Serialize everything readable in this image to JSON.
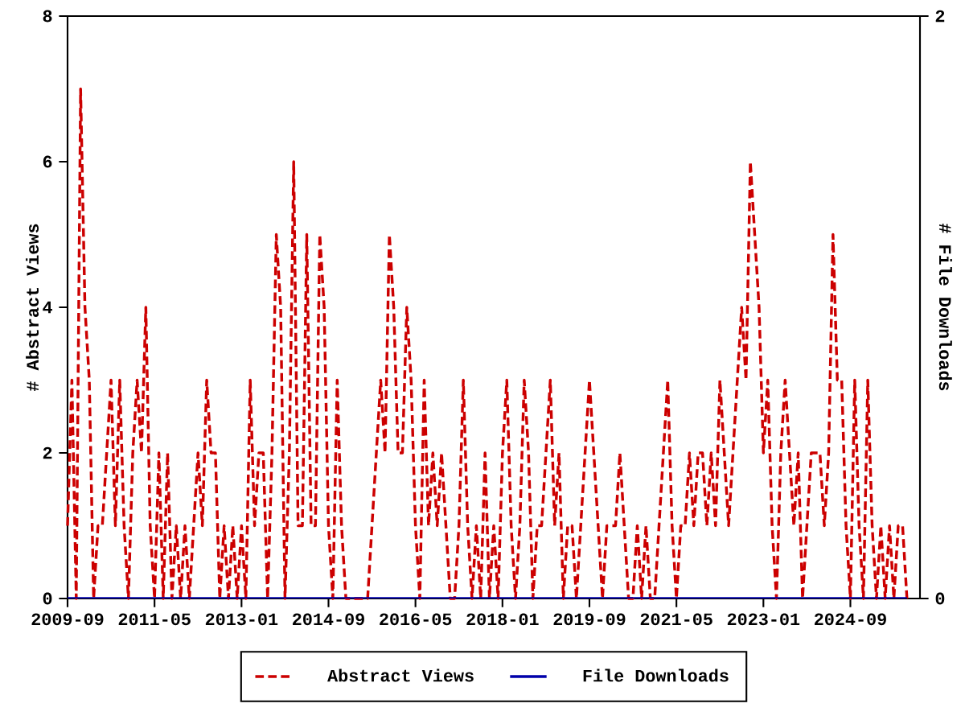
{
  "chart_data": {
    "type": "line",
    "ylabel": "# Abstract Views",
    "y2label": "# File Downloads",
    "x": [
      "2009-09",
      "2009-10",
      "2009-11",
      "2009-12",
      "2010-01",
      "2010-02",
      "2010-03",
      "2010-04",
      "2010-05",
      "2010-06",
      "2010-07",
      "2010-08",
      "2010-09",
      "2010-10",
      "2010-11",
      "2010-12",
      "2011-01",
      "2011-02",
      "2011-03",
      "2011-04",
      "2011-05",
      "2011-06",
      "2011-07",
      "2011-08",
      "2011-09",
      "2011-10",
      "2011-11",
      "2011-12",
      "2012-01",
      "2012-02",
      "2012-03",
      "2012-04",
      "2012-05",
      "2012-06",
      "2012-07",
      "2012-08",
      "2012-09",
      "2012-10",
      "2012-11",
      "2012-12",
      "2013-01",
      "2013-02",
      "2013-03",
      "2013-04",
      "2013-05",
      "2013-06",
      "2013-07",
      "2013-08",
      "2013-09",
      "2013-10",
      "2013-11",
      "2013-12",
      "2014-01",
      "2014-02",
      "2014-03",
      "2014-04",
      "2014-05",
      "2014-06",
      "2014-07",
      "2014-08",
      "2014-09",
      "2014-10",
      "2014-11",
      "2014-12",
      "2015-01",
      "2015-02",
      "2015-03",
      "2015-04",
      "2015-05",
      "2015-06",
      "2015-07",
      "2015-08",
      "2015-09",
      "2015-10",
      "2015-11",
      "2015-12",
      "2016-01",
      "2016-02",
      "2016-03",
      "2016-04",
      "2016-05",
      "2016-06",
      "2016-07",
      "2016-08",
      "2016-09",
      "2016-10",
      "2016-11",
      "2016-12",
      "2017-01",
      "2017-02",
      "2017-03",
      "2017-04",
      "2017-05",
      "2017-06",
      "2017-07",
      "2017-08",
      "2017-09",
      "2017-10",
      "2017-11",
      "2017-12",
      "2018-01",
      "2018-02",
      "2018-03",
      "2018-04",
      "2018-05",
      "2018-06",
      "2018-07",
      "2018-08",
      "2018-09",
      "2018-10",
      "2018-11",
      "2018-12",
      "2019-01",
      "2019-02",
      "2019-03",
      "2019-04",
      "2019-05",
      "2019-06",
      "2019-07",
      "2019-08",
      "2019-09",
      "2019-10",
      "2019-11",
      "2019-12",
      "2020-01",
      "2020-02",
      "2020-03",
      "2020-04",
      "2020-05",
      "2020-06",
      "2020-07",
      "2020-08",
      "2020-09",
      "2020-10",
      "2020-11",
      "2020-12",
      "2021-01",
      "2021-02",
      "2021-03",
      "2021-04",
      "2021-05",
      "2021-06",
      "2021-07",
      "2021-08",
      "2021-09",
      "2021-10",
      "2021-11",
      "2021-12",
      "2022-01",
      "2022-02",
      "2022-03",
      "2022-04",
      "2022-05",
      "2022-06",
      "2022-07",
      "2022-08",
      "2022-09",
      "2022-10",
      "2022-11",
      "2022-12",
      "2023-01",
      "2023-02",
      "2023-03",
      "2023-04",
      "2023-05",
      "2023-06",
      "2023-07",
      "2023-08",
      "2023-09",
      "2023-10",
      "2023-11",
      "2023-12",
      "2024-01",
      "2024-02",
      "2024-03",
      "2024-04",
      "2024-05",
      "2024-06",
      "2024-07",
      "2024-08",
      "2024-09",
      "2024-10",
      "2024-11",
      "2024-12",
      "2025-01",
      "2025-02",
      "2025-03",
      "2025-04",
      "2025-05",
      "2025-06",
      "2025-07",
      "2025-08",
      "2025-09",
      "2025-10"
    ],
    "series": [
      {
        "name": "Abstract Views",
        "color": "#cc0000",
        "line_style": "dashed",
        "values": [
          1,
          3,
          0,
          7,
          4,
          3,
          0,
          1,
          1,
          2,
          3,
          1,
          3,
          1,
          0,
          2,
          3,
          2,
          4,
          1,
          0,
          2,
          0,
          2,
          0,
          1,
          0,
          1,
          0,
          1,
          2,
          1,
          3,
          2,
          2,
          0,
          1,
          0,
          1,
          0,
          1,
          0,
          3,
          1,
          2,
          2,
          0,
          2,
          5,
          4,
          0,
          2,
          6,
          1,
          1,
          5,
          1,
          1,
          5,
          4,
          1,
          0,
          3,
          1,
          0,
          0,
          0,
          0,
          0,
          0,
          1,
          2,
          3,
          2,
          5,
          4,
          2,
          2,
          4,
          3,
          1,
          0,
          3,
          1,
          2,
          1,
          2,
          1,
          0,
          0,
          1,
          3,
          1,
          0,
          1,
          0,
          2,
          0,
          1,
          0,
          2,
          3,
          1,
          0,
          1,
          3,
          2,
          0,
          1,
          1,
          2,
          3,
          1,
          2,
          0,
          1,
          1,
          0,
          1,
          2,
          3,
          2,
          1,
          0,
          1,
          1,
          1,
          2,
          1,
          0,
          0,
          1,
          0,
          1,
          0,
          0,
          1,
          2,
          3,
          1,
          0,
          1,
          1,
          2,
          1,
          2,
          2,
          1,
          2,
          1,
          3,
          2,
          1,
          2,
          3,
          4,
          3,
          6,
          5,
          4,
          2,
          3,
          1,
          0,
          2,
          3,
          2,
          1,
          2,
          0,
          1,
          2,
          2,
          2,
          1,
          2,
          5,
          3,
          3,
          1,
          0,
          3,
          1,
          0,
          3,
          1,
          0,
          1,
          0,
          1,
          0,
          1,
          1,
          0
        ]
      },
      {
        "name": "File Downloads",
        "color": "#0000aa",
        "line_style": "solid",
        "axis": "y2",
        "values": [
          0,
          0,
          0,
          0,
          0,
          0,
          0,
          0,
          0,
          0,
          0,
          0,
          0,
          0,
          0,
          0,
          0,
          0,
          0,
          0,
          0,
          0,
          0,
          0,
          0,
          0,
          0,
          0,
          0,
          0,
          0,
          0,
          0,
          0,
          0,
          0,
          0,
          0,
          0,
          0,
          0,
          0,
          0,
          0,
          0,
          0,
          0,
          0,
          0,
          0,
          0,
          0,
          0,
          0,
          0,
          0,
          0,
          0,
          0,
          0,
          0,
          0,
          0,
          0,
          0,
          0,
          0,
          0,
          0,
          0,
          0,
          0,
          0,
          0,
          0,
          0,
          0,
          0,
          0,
          0,
          0,
          0,
          0,
          0,
          0,
          0,
          0,
          0,
          0,
          0,
          0,
          0,
          0,
          0,
          0,
          0,
          0,
          0,
          0,
          0,
          0,
          0,
          0,
          0,
          0,
          0,
          0,
          0,
          0,
          0,
          0,
          0,
          0,
          0,
          0,
          0,
          0,
          0,
          0,
          0,
          0,
          0,
          0,
          0,
          0,
          0,
          0,
          0,
          0,
          0,
          0,
          0,
          0,
          0,
          0,
          0,
          0,
          0,
          0,
          0,
          0,
          0,
          0,
          0,
          0,
          0,
          0,
          0,
          0,
          0,
          0,
          0,
          0,
          0,
          0,
          0,
          0,
          0,
          0,
          0,
          0,
          0,
          0,
          0,
          0,
          0,
          0,
          0,
          0,
          0,
          0,
          0,
          0,
          0,
          0,
          0,
          0,
          0,
          0,
          0,
          0,
          0,
          0,
          0,
          0,
          0,
          0,
          0,
          0,
          0,
          0,
          0,
          0,
          0
        ]
      }
    ],
    "xlim": [
      "2009-09",
      "2026-01"
    ],
    "xticks": [
      "2009-09",
      "2011-05",
      "2013-01",
      "2014-09",
      "2016-05",
      "2018-01",
      "2019-09",
      "2021-05",
      "2023-01",
      "2024-09"
    ],
    "ylim": [
      0,
      8
    ],
    "yticks": [
      0,
      2,
      4,
      6,
      8
    ],
    "y2lim": [
      0,
      2
    ],
    "y2ticks": [
      0,
      2
    ],
    "legend": "bottom",
    "grid": false
  }
}
